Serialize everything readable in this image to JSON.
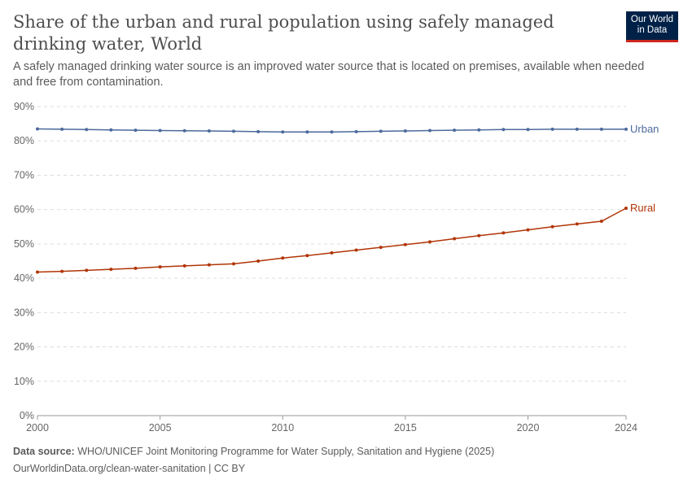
{
  "title": "Share of the urban and rural population using safely managed drinking water, World",
  "subtitle": "A safely managed drinking water source is an improved water source that is located on premises, available when needed and free from contamination.",
  "logo": "Our World in Data",
  "footer": {
    "source_label": "Data source:",
    "source": "WHO/UNICEF Joint Monitoring Programme for Water Supply, Sanitation and Hygiene (2025)",
    "url": "OurWorldinData.org/clean-water-sanitation | CC BY"
  },
  "chart_data": {
    "type": "line",
    "x": [
      2000,
      2001,
      2002,
      2003,
      2004,
      2005,
      2006,
      2007,
      2008,
      2009,
      2010,
      2011,
      2012,
      2013,
      2014,
      2015,
      2016,
      2017,
      2018,
      2019,
      2020,
      2021,
      2022,
      2023,
      2024
    ],
    "xticks": [
      "2000",
      "2005",
      "2010",
      "2015",
      "2020",
      "2024"
    ],
    "yticks": [
      "0%",
      "10%",
      "20%",
      "30%",
      "40%",
      "50%",
      "60%",
      "70%",
      "80%",
      "90%"
    ],
    "ylim": [
      0,
      90
    ],
    "grid": "horizontal dashed",
    "legend": "inline-right",
    "series": [
      {
        "name": "Urban",
        "color": "#4c6a9c",
        "values": [
          83.5,
          83.4,
          83.3,
          83.2,
          83.1,
          83.0,
          82.95,
          82.9,
          82.8,
          82.7,
          82.6,
          82.6,
          82.6,
          82.7,
          82.8,
          82.9,
          83.0,
          83.1,
          83.2,
          83.3,
          83.3,
          83.4,
          83.4,
          83.4,
          83.4
        ]
      },
      {
        "name": "Rural",
        "color": "#b13507",
        "values": [
          41.8,
          42.0,
          42.3,
          42.6,
          42.9,
          43.3,
          43.6,
          43.9,
          44.2,
          45.0,
          45.9,
          46.6,
          47.4,
          48.2,
          49.0,
          49.8,
          50.6,
          51.5,
          52.4,
          53.2,
          54.1,
          55.0,
          55.8,
          56.6,
          60.4
        ]
      }
    ]
  }
}
